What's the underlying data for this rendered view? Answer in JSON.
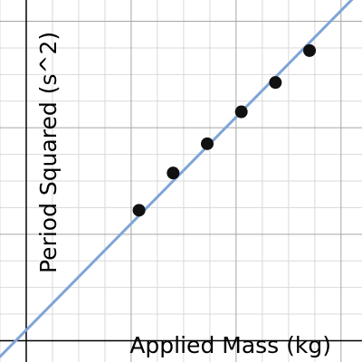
{
  "chart_data": {
    "type": "scatter",
    "xlabel": "Applied Mass (kg)",
    "ylabel": "Period Squared (s^2)",
    "xlim": [
      -0.5,
      6.4
    ],
    "ylim": [
      -0.4,
      6.4
    ],
    "grid": true,
    "points": {
      "x": [
        2.15,
        2.8,
        3.45,
        4.1,
        4.75,
        5.4
      ],
      "y": [
        2.45,
        3.15,
        3.7,
        4.3,
        4.85,
        5.45
      ]
    },
    "fit_line": {
      "slope": 1.0,
      "intercept": 0.2
    },
    "colors": {
      "points": "#111111",
      "fit_line": "#7fa5d6",
      "minor_grid": "#d9d9d9",
      "major_grid": "#a6a6a6",
      "axes": "#000000"
    }
  }
}
